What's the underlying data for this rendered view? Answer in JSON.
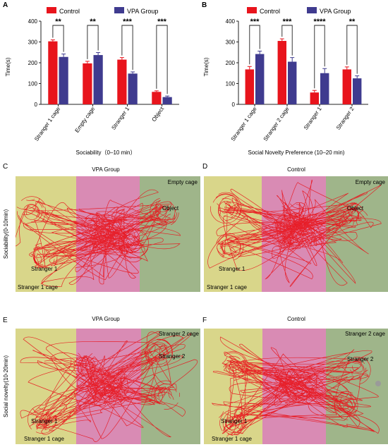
{
  "colors": {
    "control": "#e8141c",
    "vpa": "#3f3b8f",
    "zone_left": "#d9d68a",
    "zone_mid": "#d98bb4",
    "zone_right": "#9fb58a",
    "track": "#e8141c",
    "axis": "#222222"
  },
  "chart_data": [
    {
      "panel": "A",
      "type": "bar",
      "xlabel": "Sociability（0–10 min）",
      "ylabel": "Time(s)",
      "ylim": [
        0,
        400
      ],
      "yticks": [
        "0",
        "100",
        "200",
        "300",
        "400"
      ],
      "legend": {
        "position": "top",
        "entries": [
          "Control",
          "VPA Group"
        ]
      },
      "categories": [
        "Stranger 1 cage",
        "Empty cage",
        "Stranger 1",
        "Object"
      ],
      "series": [
        {
          "name": "Control",
          "values": [
            303,
            197,
            215,
            60
          ],
          "errors": [
            7,
            10,
            10,
            5
          ]
        },
        {
          "name": "VPA Group",
          "values": [
            228,
            237,
            148,
            35
          ],
          "errors": [
            14,
            12,
            8,
            5
          ]
        }
      ],
      "significance": [
        "**",
        "**",
        "***",
        "***"
      ]
    },
    {
      "panel": "B",
      "type": "bar",
      "xlabel": "Social Novelty Preference (10–20 min)",
      "ylabel": "Time(s)",
      "ylim": [
        0,
        400
      ],
      "yticks": [
        "0",
        "100",
        "200",
        "300",
        "400"
      ],
      "legend": {
        "position": "top",
        "entries": [
          "Control",
          "VPA Group"
        ]
      },
      "categories": [
        "Stranger 1 cage",
        "Stranger 2 cage",
        "Stranger 1",
        "Stranger 2"
      ],
      "series": [
        {
          "name": "Control",
          "values": [
            168,
            305,
            57,
            168
          ],
          "errors": [
            14,
            10,
            10,
            12
          ]
        },
        {
          "name": "VPA Group",
          "values": [
            242,
            205,
            150,
            125
          ],
          "errors": [
            14,
            20,
            22,
            12
          ]
        }
      ],
      "significance": [
        "***",
        "***",
        "****",
        "**"
      ]
    }
  ],
  "tracks": {
    "C": {
      "letter": "C",
      "title": "VPA Group",
      "row_label": "Sociability(0-10min)",
      "tr": "Empty cage",
      "mid_right": "Object",
      "bl1": "Stranger 1",
      "bl2": "Stranger 1 cage"
    },
    "D": {
      "letter": "D",
      "title": "Control",
      "row_label": "",
      "tr": "Empty cage",
      "mid_right": "Object",
      "bl1": "Stranger 1",
      "bl2": "Stranger 1 cage"
    },
    "E": {
      "letter": "E",
      "title": "VPA Group",
      "row_label": "Social novelty(10-20min)",
      "tr": "Stranger 2 cage",
      "mid_right": "Stranger 2",
      "bl1": "Stranger 1",
      "bl2": "Stranger 1 cage"
    },
    "F": {
      "letter": "F",
      "title": "Control",
      "row_label": "",
      "tr": "Stranger 2 cage",
      "mid_right": "Stranger 2",
      "bl1": "Stranger 1",
      "bl2": "Stranger 1 cage"
    }
  }
}
